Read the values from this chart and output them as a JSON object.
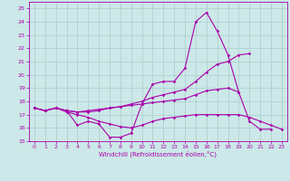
{
  "xlabel": "Windchill (Refroidissement éolien,°C)",
  "xlim": [
    -0.5,
    23.5
  ],
  "ylim": [
    15,
    25.5
  ],
  "yticks": [
    15,
    16,
    17,
    18,
    19,
    20,
    21,
    22,
    23,
    24,
    25
  ],
  "xticks": [
    0,
    1,
    2,
    3,
    4,
    5,
    6,
    7,
    8,
    9,
    10,
    11,
    12,
    13,
    14,
    15,
    16,
    17,
    18,
    19,
    20,
    21,
    22,
    23
  ],
  "bg_color": "#cce8e8",
  "line_color": "#aa00aa",
  "grid_color": "#aacccc",
  "lines": [
    {
      "x": [
        0,
        1,
        2,
        3,
        4,
        5,
        6,
        7,
        8,
        9,
        10,
        11,
        12,
        13,
        14,
        15,
        16,
        17,
        18,
        19,
        20,
        21,
        22
      ],
      "y": [
        17.5,
        17.3,
        17.5,
        17.3,
        16.2,
        16.5,
        16.3,
        15.3,
        15.3,
        15.6,
        17.8,
        19.3,
        19.5,
        19.5,
        20.5,
        24.0,
        24.7,
        23.3,
        21.5,
        18.7,
        16.5,
        15.9,
        15.9
      ]
    },
    {
      "x": [
        0,
        1,
        2,
        3,
        4,
        5,
        6,
        7,
        8,
        9,
        10,
        11,
        12,
        13,
        14,
        15,
        16,
        17,
        18,
        19,
        20
      ],
      "y": [
        17.5,
        17.3,
        17.5,
        17.3,
        17.2,
        17.2,
        17.3,
        17.5,
        17.6,
        17.8,
        18.0,
        18.3,
        18.5,
        18.7,
        18.9,
        19.5,
        20.2,
        20.8,
        21.0,
        21.5,
        21.6
      ]
    },
    {
      "x": [
        0,
        1,
        2,
        3,
        4,
        5,
        6,
        7,
        8,
        9,
        10,
        11,
        12,
        13,
        14,
        15,
        16,
        17,
        18,
        19,
        20,
        21,
        22,
        23
      ],
      "y": [
        17.5,
        17.3,
        17.5,
        17.2,
        17.0,
        16.8,
        16.5,
        16.3,
        16.1,
        16.0,
        16.2,
        16.5,
        16.7,
        16.8,
        16.9,
        17.0,
        17.0,
        17.0,
        17.0,
        17.0,
        16.8,
        16.5,
        16.2,
        15.9
      ]
    },
    {
      "x": [
        0,
        1,
        2,
        3,
        4,
        5,
        6,
        7,
        8,
        9,
        10,
        11,
        12,
        13,
        14,
        15,
        16,
        17,
        18,
        19
      ],
      "y": [
        17.5,
        17.3,
        17.5,
        17.3,
        17.2,
        17.3,
        17.4,
        17.5,
        17.6,
        17.7,
        17.8,
        17.9,
        18.0,
        18.1,
        18.2,
        18.5,
        18.8,
        18.9,
        19.0,
        18.7
      ]
    }
  ]
}
